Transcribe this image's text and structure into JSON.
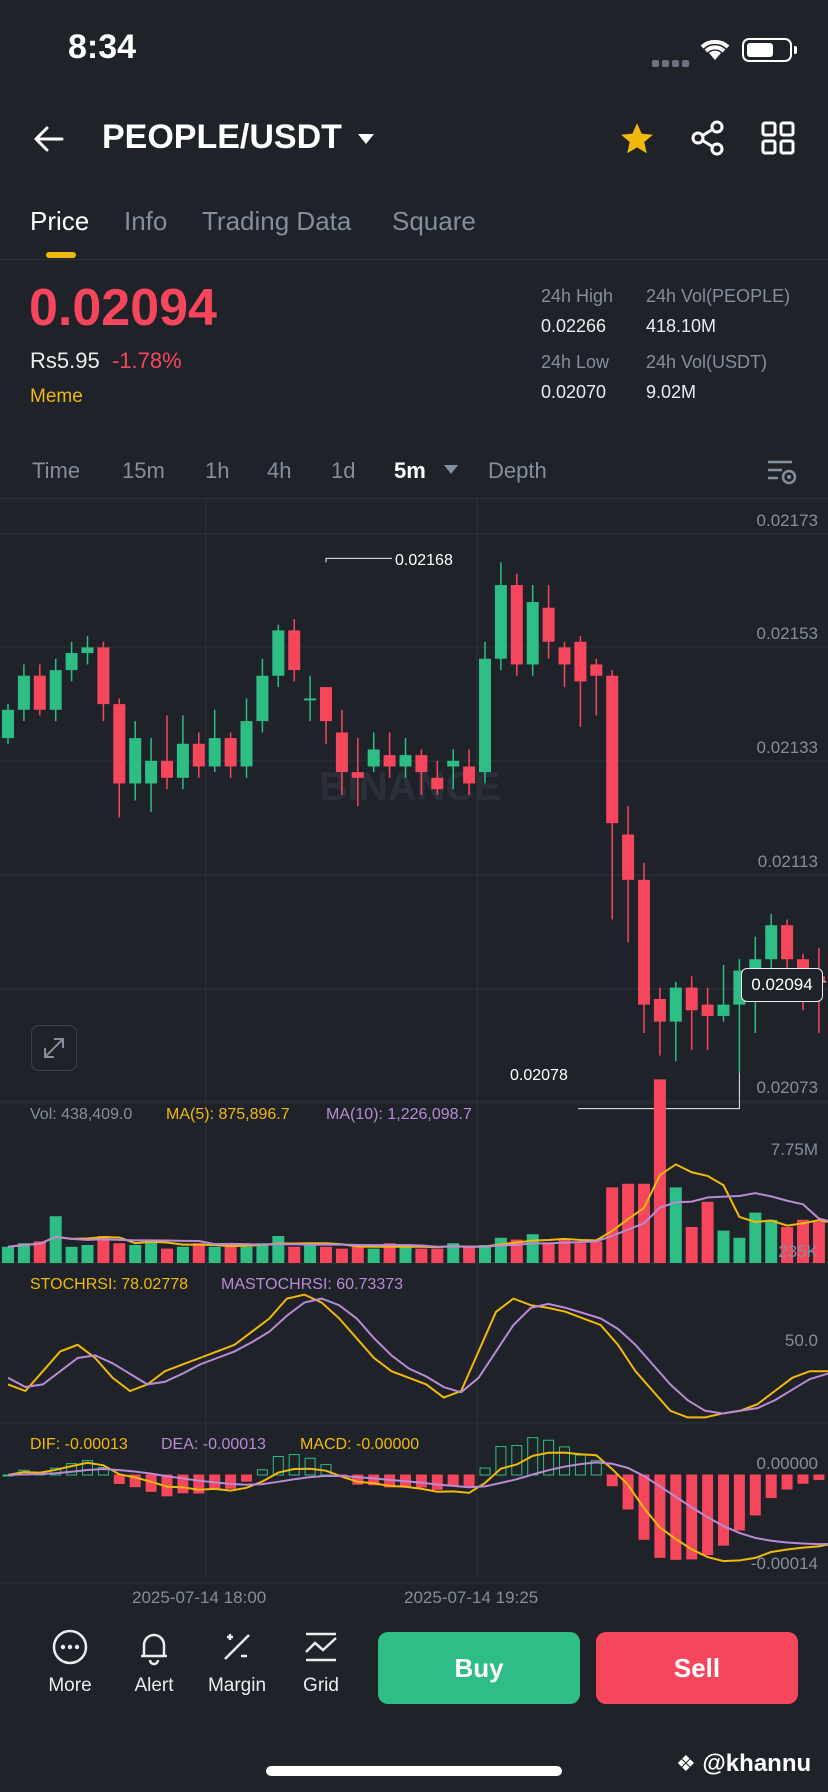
{
  "status_bar": {
    "time": "8:34"
  },
  "header": {
    "pair": "PEOPLE/USDT"
  },
  "tabs": [
    {
      "label": "Price"
    },
    {
      "label": "Info"
    },
    {
      "label": "Trading Data"
    },
    {
      "label": "Square"
    }
  ],
  "ticker": {
    "last_price": "0.02094",
    "fiat_price": "Rs5.95",
    "change_pct": "-1.78%",
    "tag": "Meme",
    "high_label": "24h High",
    "high_value": "0.02266",
    "low_label": "24h Low",
    "low_value": "0.02070",
    "vol_base_label": "24h Vol(PEOPLE)",
    "vol_base_value": "418.10M",
    "vol_quote_label": "24h Vol(USDT)",
    "vol_quote_value": "9.02M"
  },
  "intervals": [
    {
      "label": "Time"
    },
    {
      "label": "15m"
    },
    {
      "label": "1h"
    },
    {
      "label": "4h"
    },
    {
      "label": "1d"
    },
    {
      "label": "5m"
    },
    {
      "label": "Depth"
    }
  ],
  "chart_data": {
    "type": "candlestick",
    "interval": "5m",
    "watermark": "BINANCE",
    "price_axis": [
      "0.02173",
      "0.02153",
      "0.02133",
      "0.02113",
      "0.02094",
      "0.02073"
    ],
    "ylim": [
      0.02073,
      0.02173
    ],
    "current_price": "0.02094",
    "high_marker": "0.02168",
    "low_marker": "0.02078",
    "x_labels": [
      "2025-07-14 18:00",
      "2025-07-14 19:25"
    ],
    "candles": [
      [
        0.02137,
        0.02142,
        0.02136,
        0.02143
      ],
      [
        0.02142,
        0.02148,
        0.0214,
        0.0215
      ],
      [
        0.02148,
        0.02142,
        0.02141,
        0.0215
      ],
      [
        0.02142,
        0.02149,
        0.0214,
        0.02151
      ],
      [
        0.02149,
        0.02152,
        0.02147,
        0.02154
      ],
      [
        0.02152,
        0.02153,
        0.0215,
        0.02155
      ],
      [
        0.02153,
        0.02143,
        0.0214,
        0.02154
      ],
      [
        0.02143,
        0.02129,
        0.02123,
        0.02144
      ],
      [
        0.02129,
        0.02137,
        0.02126,
        0.0214
      ],
      [
        0.02129,
        0.02133,
        0.02124,
        0.02137
      ],
      [
        0.02133,
        0.0213,
        0.02128,
        0.02141
      ],
      [
        0.0213,
        0.02136,
        0.02128,
        0.02141
      ],
      [
        0.02136,
        0.02132,
        0.0213,
        0.02138
      ],
      [
        0.02132,
        0.02137,
        0.02131,
        0.02142
      ],
      [
        0.02137,
        0.02132,
        0.0213,
        0.02138
      ],
      [
        0.02132,
        0.0214,
        0.0213,
        0.02144
      ],
      [
        0.0214,
        0.02148,
        0.02138,
        0.02151
      ],
      [
        0.02148,
        0.02156,
        0.02146,
        0.02157
      ],
      [
        0.02156,
        0.02149,
        0.02147,
        0.02158
      ],
      [
        0.02144,
        0.02144,
        0.0214,
        0.02148
      ],
      [
        0.02146,
        0.0214,
        0.02136,
        0.02146
      ],
      [
        0.02138,
        0.02131,
        0.02127,
        0.02142
      ],
      [
        0.02131,
        0.0213,
        0.02125,
        0.02137
      ],
      [
        0.02132,
        0.02135,
        0.02131,
        0.02138
      ],
      [
        0.02134,
        0.02132,
        0.0213,
        0.02138
      ],
      [
        0.02132,
        0.02134,
        0.0213,
        0.02137
      ],
      [
        0.02134,
        0.02131,
        0.02127,
        0.02135
      ],
      [
        0.0213,
        0.02128,
        0.02127,
        0.02133
      ],
      [
        0.02132,
        0.02133,
        0.02128,
        0.02135
      ],
      [
        0.02132,
        0.02129,
        0.02127,
        0.02135
      ],
      [
        0.02131,
        0.02151,
        0.02129,
        0.02154
      ],
      [
        0.02151,
        0.02164,
        0.02149,
        0.02168
      ],
      [
        0.02164,
        0.0215,
        0.02148,
        0.02166
      ],
      [
        0.0215,
        0.02161,
        0.02148,
        0.02164
      ],
      [
        0.0216,
        0.02154,
        0.02151,
        0.02164
      ],
      [
        0.02153,
        0.0215,
        0.02146,
        0.02154
      ],
      [
        0.02154,
        0.02147,
        0.02139,
        0.02155
      ],
      [
        0.0215,
        0.02148,
        0.02141,
        0.02151
      ],
      [
        0.02148,
        0.02122,
        0.02105,
        0.02149
      ],
      [
        0.0212,
        0.02112,
        0.02101,
        0.02125
      ],
      [
        0.02112,
        0.0209,
        0.02085,
        0.02115
      ],
      [
        0.02091,
        0.02087,
        0.02081,
        0.02093
      ],
      [
        0.02087,
        0.02093,
        0.0208,
        0.02094
      ],
      [
        0.02093,
        0.02089,
        0.02082,
        0.02095
      ],
      [
        0.0209,
        0.02088,
        0.02082,
        0.02093
      ],
      [
        0.02088,
        0.0209,
        0.02087,
        0.02097
      ],
      [
        0.0209,
        0.02096,
        0.02078,
        0.02098
      ],
      [
        0.02096,
        0.02098,
        0.02085,
        0.02102
      ],
      [
        0.02098,
        0.02104,
        0.02092,
        0.02106
      ],
      [
        0.02104,
        0.02098,
        0.02096,
        0.02105
      ],
      [
        0.02098,
        0.02096,
        0.02089,
        0.02099
      ],
      [
        0.02095,
        0.02094,
        0.02085,
        0.021
      ],
      [
        0.02094,
        0.02097,
        0.02089,
        0.02099
      ],
      [
        0.02098,
        0.02095,
        0.0209,
        0.021
      ],
      [
        0.02092,
        0.02097,
        0.0209,
        0.02099
      ],
      [
        0.02095,
        0.021,
        0.02095,
        0.02105
      ],
      [
        0.021,
        0.02097,
        0.02095,
        0.02102
      ],
      [
        0.02097,
        0.02096,
        0.02093,
        0.02098
      ]
    ],
    "volume": {
      "label": "Vol: 438,409.0",
      "ma5_label": "MA(5): 875,896.7",
      "ma10_label": "MA(10): 1,226,098.7",
      "axis": [
        "7.75M",
        "235K"
      ],
      "values": [
        0.45,
        0.55,
        0.6,
        1.3,
        0.45,
        0.5,
        0.75,
        0.55,
        0.5,
        0.65,
        0.4,
        0.45,
        0.55,
        0.45,
        0.5,
        0.45,
        0.55,
        0.75,
        0.45,
        0.55,
        0.45,
        0.4,
        0.45,
        0.4,
        0.55,
        0.45,
        0.4,
        0.4,
        0.55,
        0.45,
        0.5,
        0.7,
        0.65,
        0.8,
        0.55,
        0.65,
        0.55,
        0.6,
        2.1,
        2.2,
        2.2,
        5.1,
        2.1,
        1.0,
        1.7,
        0.9,
        0.7,
        1.4,
        1.2,
        1.0,
        1.2,
        1.15,
        1.0,
        0.8,
        0.55,
        0.6,
        0.4,
        0.35
      ]
    },
    "stochrsi": {
      "label": "STOCHRSI: 78.02778",
      "ma_label": "MASTOCHRSI: 60.73373",
      "axis": [
        "50.0"
      ],
      "k": [
        30,
        25,
        40,
        55,
        60,
        50,
        35,
        25,
        30,
        40,
        45,
        50,
        55,
        60,
        70,
        80,
        95,
        98,
        92,
        80,
        65,
        50,
        40,
        35,
        30,
        20,
        25,
        55,
        85,
        95,
        90,
        88,
        85,
        80,
        75,
        60,
        40,
        25,
        10,
        5,
        5,
        8,
        10,
        15,
        25,
        35,
        40,
        40,
        42,
        45,
        55,
        65,
        78
      ],
      "d": [
        35,
        28,
        30,
        40,
        50,
        52,
        46,
        38,
        30,
        32,
        38,
        45,
        50,
        55,
        62,
        70,
        82,
        92,
        95,
        90,
        80,
        65,
        52,
        42,
        36,
        28,
        24,
        35,
        55,
        75,
        88,
        91,
        88,
        84,
        80,
        72,
        60,
        45,
        30,
        18,
        10,
        8,
        10,
        12,
        18,
        26,
        34,
        38,
        40,
        42,
        48,
        55,
        61
      ]
    },
    "macd": {
      "dif_label": "DIF: -0.00013",
      "dea_label": "DEA: -0.00013",
      "macd_label": "MACD: -0.00000",
      "axis": [
        "0.00000",
        "-0.00014"
      ]
    }
  },
  "bottom_bar": {
    "more": "More",
    "alert": "Alert",
    "margin": "Margin",
    "grid": "Grid",
    "buy": "Buy",
    "sell": "Sell"
  },
  "watermark_user": "@khannu",
  "colors": {
    "up": "#2ebd85",
    "down": "#f6465d",
    "accent": "#f0b90b",
    "bg": "#1f2329"
  }
}
